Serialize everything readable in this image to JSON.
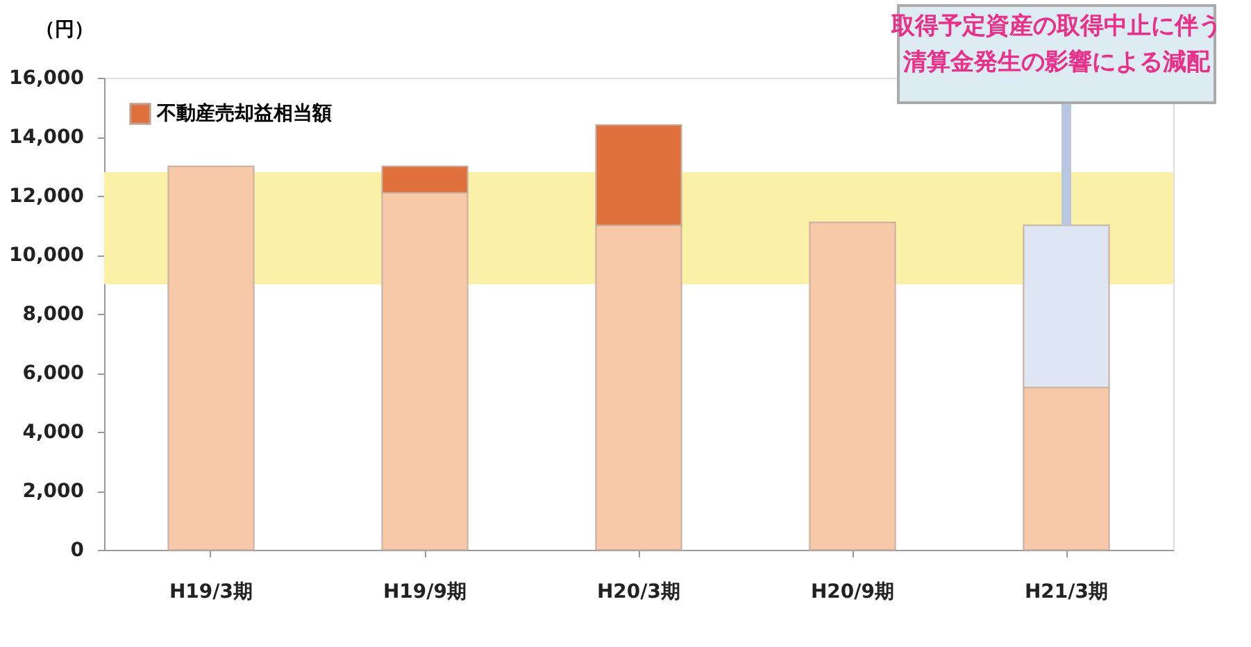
{
  "chart_data": {
    "type": "bar",
    "stacked": true,
    "ylabel": "（円）",
    "categories": [
      "H19/3期",
      "H19/9期",
      "H20/3期",
      "H20/9期",
      "H21/3期"
    ],
    "series": [
      {
        "color": "#f7c9a8",
        "values": [
          13000,
          12100,
          11000,
          11100,
          5500
        ]
      },
      {
        "name": "不動産売却益相当額",
        "color": "#e0703c",
        "values": [
          null,
          900,
          3400,
          null,
          null
        ]
      },
      {
        "color": "#dfe6f3",
        "values": [
          null,
          null,
          null,
          null,
          5500
        ]
      }
    ],
    "ylim": [
      0,
      16000
    ],
    "yticks": [
      {
        "value": 0,
        "label": "0"
      },
      {
        "value": 2000,
        "label": "2,000"
      },
      {
        "value": 4000,
        "label": "4,000"
      },
      {
        "value": 6000,
        "label": "6,000"
      },
      {
        "value": 8000,
        "label": "8,000"
      },
      {
        "value": 10000,
        "label": "10,000"
      },
      {
        "value": 12000,
        "label": "12,000"
      },
      {
        "value": 14000,
        "label": "14,000"
      },
      {
        "value": 16000,
        "label": "16,000"
      }
    ],
    "bands": [
      {
        "axis": "y",
        "from": 9000,
        "to": 12800,
        "color": "#faf0a8"
      }
    ],
    "annotations": [
      {
        "text": "取得予定資産の取得中止に伴う清算金発生の影響による減配",
        "x": "H21/3期",
        "y": 11000
      }
    ],
    "legend": "top left",
    "grid": false
  }
}
